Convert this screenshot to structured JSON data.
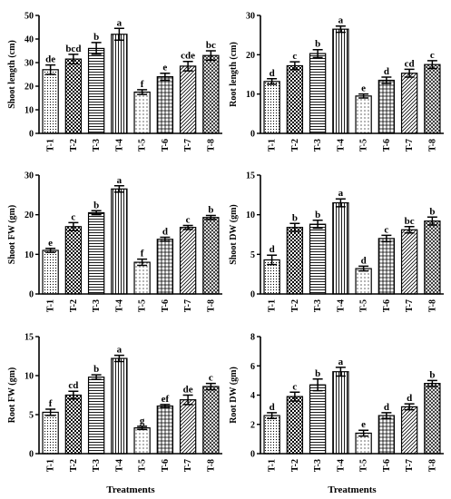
{
  "chart_data": [
    {
      "type": "bar",
      "categories": [
        "T-1",
        "T-2",
        "T-3",
        "T-4",
        "T-5",
        "T-6",
        "T-7",
        "T-8"
      ],
      "values": [
        27,
        31.5,
        36,
        42,
        17.5,
        24,
        28.5,
        33
      ],
      "errors": [
        2,
        2,
        2.5,
        2.5,
        1,
        1.5,
        2,
        2
      ],
      "letters": [
        "de",
        "bcd",
        "b",
        "a",
        "f",
        "e",
        "cde",
        "bc"
      ],
      "ylabel": "Shoot length (cm)",
      "xlabel": "",
      "ylim": [
        0,
        50
      ],
      "yticks": [
        0,
        10,
        20,
        30,
        40,
        50
      ]
    },
    {
      "type": "bar",
      "categories": [
        "T-1",
        "T-2",
        "T-3",
        "T-4",
        "T-5",
        "T-6",
        "T-7",
        "T-8"
      ],
      "values": [
        13.2,
        17.2,
        20.3,
        26.5,
        9.5,
        13.5,
        15.3,
        17.5
      ],
      "errors": [
        0.7,
        1,
        1,
        0.8,
        0.5,
        0.8,
        1,
        1
      ],
      "letters": [
        "d",
        "c",
        "b",
        "a",
        "e",
        "d",
        "cd",
        "c"
      ],
      "ylabel": "Root length (cm)",
      "xlabel": "",
      "ylim": [
        0,
        30
      ],
      "yticks": [
        0,
        10,
        20,
        30
      ]
    },
    {
      "type": "bar",
      "categories": [
        "T-1",
        "T-2",
        "T-3",
        "T-4",
        "T-5",
        "T-6",
        "T-7",
        "T-8"
      ],
      "values": [
        11,
        17,
        20.5,
        26.5,
        8,
        13.8,
        16.8,
        19.3
      ],
      "errors": [
        0.5,
        1,
        0.5,
        0.8,
        0.8,
        0.5,
        0.5,
        0.5
      ],
      "letters": [
        "e",
        "c",
        "b",
        "a",
        "f",
        "d",
        "c",
        "b"
      ],
      "ylabel": "Shoot FW (gm)",
      "xlabel": "",
      "ylim": [
        0,
        30
      ],
      "yticks": [
        0,
        10,
        20,
        30
      ]
    },
    {
      "type": "bar",
      "categories": [
        "T-1",
        "T-2",
        "T-3",
        "T-4",
        "T-5",
        "T-6",
        "T-7",
        "T-8"
      ],
      "values": [
        4.3,
        8.4,
        8.8,
        11.5,
        3.2,
        7,
        8.1,
        9.2
      ],
      "errors": [
        0.6,
        0.5,
        0.5,
        0.5,
        0.3,
        0.4,
        0.4,
        0.5
      ],
      "letters": [
        "d",
        "b",
        "b",
        "a",
        "d",
        "c",
        "bc",
        "b"
      ],
      "ylabel": "Shoot DW (gm)",
      "xlabel": "",
      "ylim": [
        0,
        15
      ],
      "yticks": [
        0,
        5,
        10,
        15
      ]
    },
    {
      "type": "bar",
      "categories": [
        "T-1",
        "T-2",
        "T-3",
        "T-4",
        "T-5",
        "T-6",
        "T-7",
        "T-8"
      ],
      "values": [
        5.3,
        7.5,
        9.8,
        12.2,
        3.3,
        6.1,
        6.9,
        8.6
      ],
      "errors": [
        0.4,
        0.5,
        0.3,
        0.4,
        0.2,
        0.2,
        0.6,
        0.4
      ],
      "letters": [
        "f",
        "cd",
        "b",
        "a",
        "g",
        "ef",
        "de",
        "c"
      ],
      "ylabel": "Root FW (gm)",
      "xlabel": "Treatments",
      "ylim": [
        0,
        15
      ],
      "yticks": [
        0,
        5,
        10,
        15
      ]
    },
    {
      "type": "bar",
      "categories": [
        "T-1",
        "T-2",
        "T-3",
        "T-4",
        "T-5",
        "T-6",
        "T-7",
        "T-8"
      ],
      "values": [
        2.6,
        3.9,
        4.7,
        5.6,
        1.4,
        2.6,
        3.2,
        4.8
      ],
      "errors": [
        0.2,
        0.3,
        0.4,
        0.3,
        0.2,
        0.2,
        0.2,
        0.2
      ],
      "letters": [
        "d",
        "c",
        "b",
        "a",
        "e",
        "d",
        "d",
        "b"
      ],
      "ylabel": "Root DW (gm)",
      "xlabel": "Treatments",
      "ylim": [
        0,
        8
      ],
      "yticks": [
        0,
        2,
        4,
        6,
        8
      ]
    }
  ]
}
